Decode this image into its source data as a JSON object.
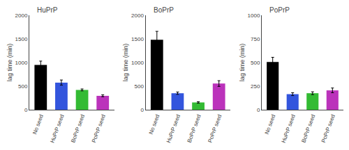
{
  "chart_data": [
    {
      "type": "bar",
      "title": "HuPrP",
      "ylabel": "lag time (min)",
      "categories": [
        "No seed",
        "HuPrP seed",
        "BoPrP seed",
        "PoPrP seed"
      ],
      "values": [
        950,
        575,
        420,
        295
      ],
      "errors": [
        80,
        55,
        20,
        20
      ],
      "colors": [
        "#000000",
        "#3355dd",
        "#33bb33",
        "#bb33bb"
      ],
      "ylim": [
        0,
        2000
      ],
      "yticks": [
        0,
        500,
        1000,
        1500,
        2000
      ],
      "grid": false
    },
    {
      "type": "bar",
      "title": "BoPrP",
      "ylabel": "lag time (min)",
      "categories": [
        "No seed",
        "HuPrP seed",
        "BoPrP seed",
        "PoPrP seed"
      ],
      "values": [
        1480,
        350,
        155,
        555
      ],
      "errors": [
        180,
        25,
        15,
        60
      ],
      "colors": [
        "#000000",
        "#3355dd",
        "#33bb33",
        "#bb33bb"
      ],
      "ylim": [
        0,
        2000
      ],
      "yticks": [
        0,
        500,
        1000,
        1500,
        2000
      ],
      "grid": false
    },
    {
      "type": "bar",
      "title": "PoPrP",
      "ylabel": "lag time (min)",
      "categories": [
        "No seed",
        "HuPrP seed",
        "BoPrP seed",
        "PoPrP seed"
      ],
      "values": [
        505,
        165,
        175,
        205
      ],
      "errors": [
        50,
        15,
        15,
        25
      ],
      "colors": [
        "#000000",
        "#3355dd",
        "#33bb33",
        "#bb33bb"
      ],
      "ylim": [
        0,
        1000
      ],
      "yticks": [
        0,
        250,
        500,
        750,
        1000
      ],
      "grid": false
    }
  ]
}
